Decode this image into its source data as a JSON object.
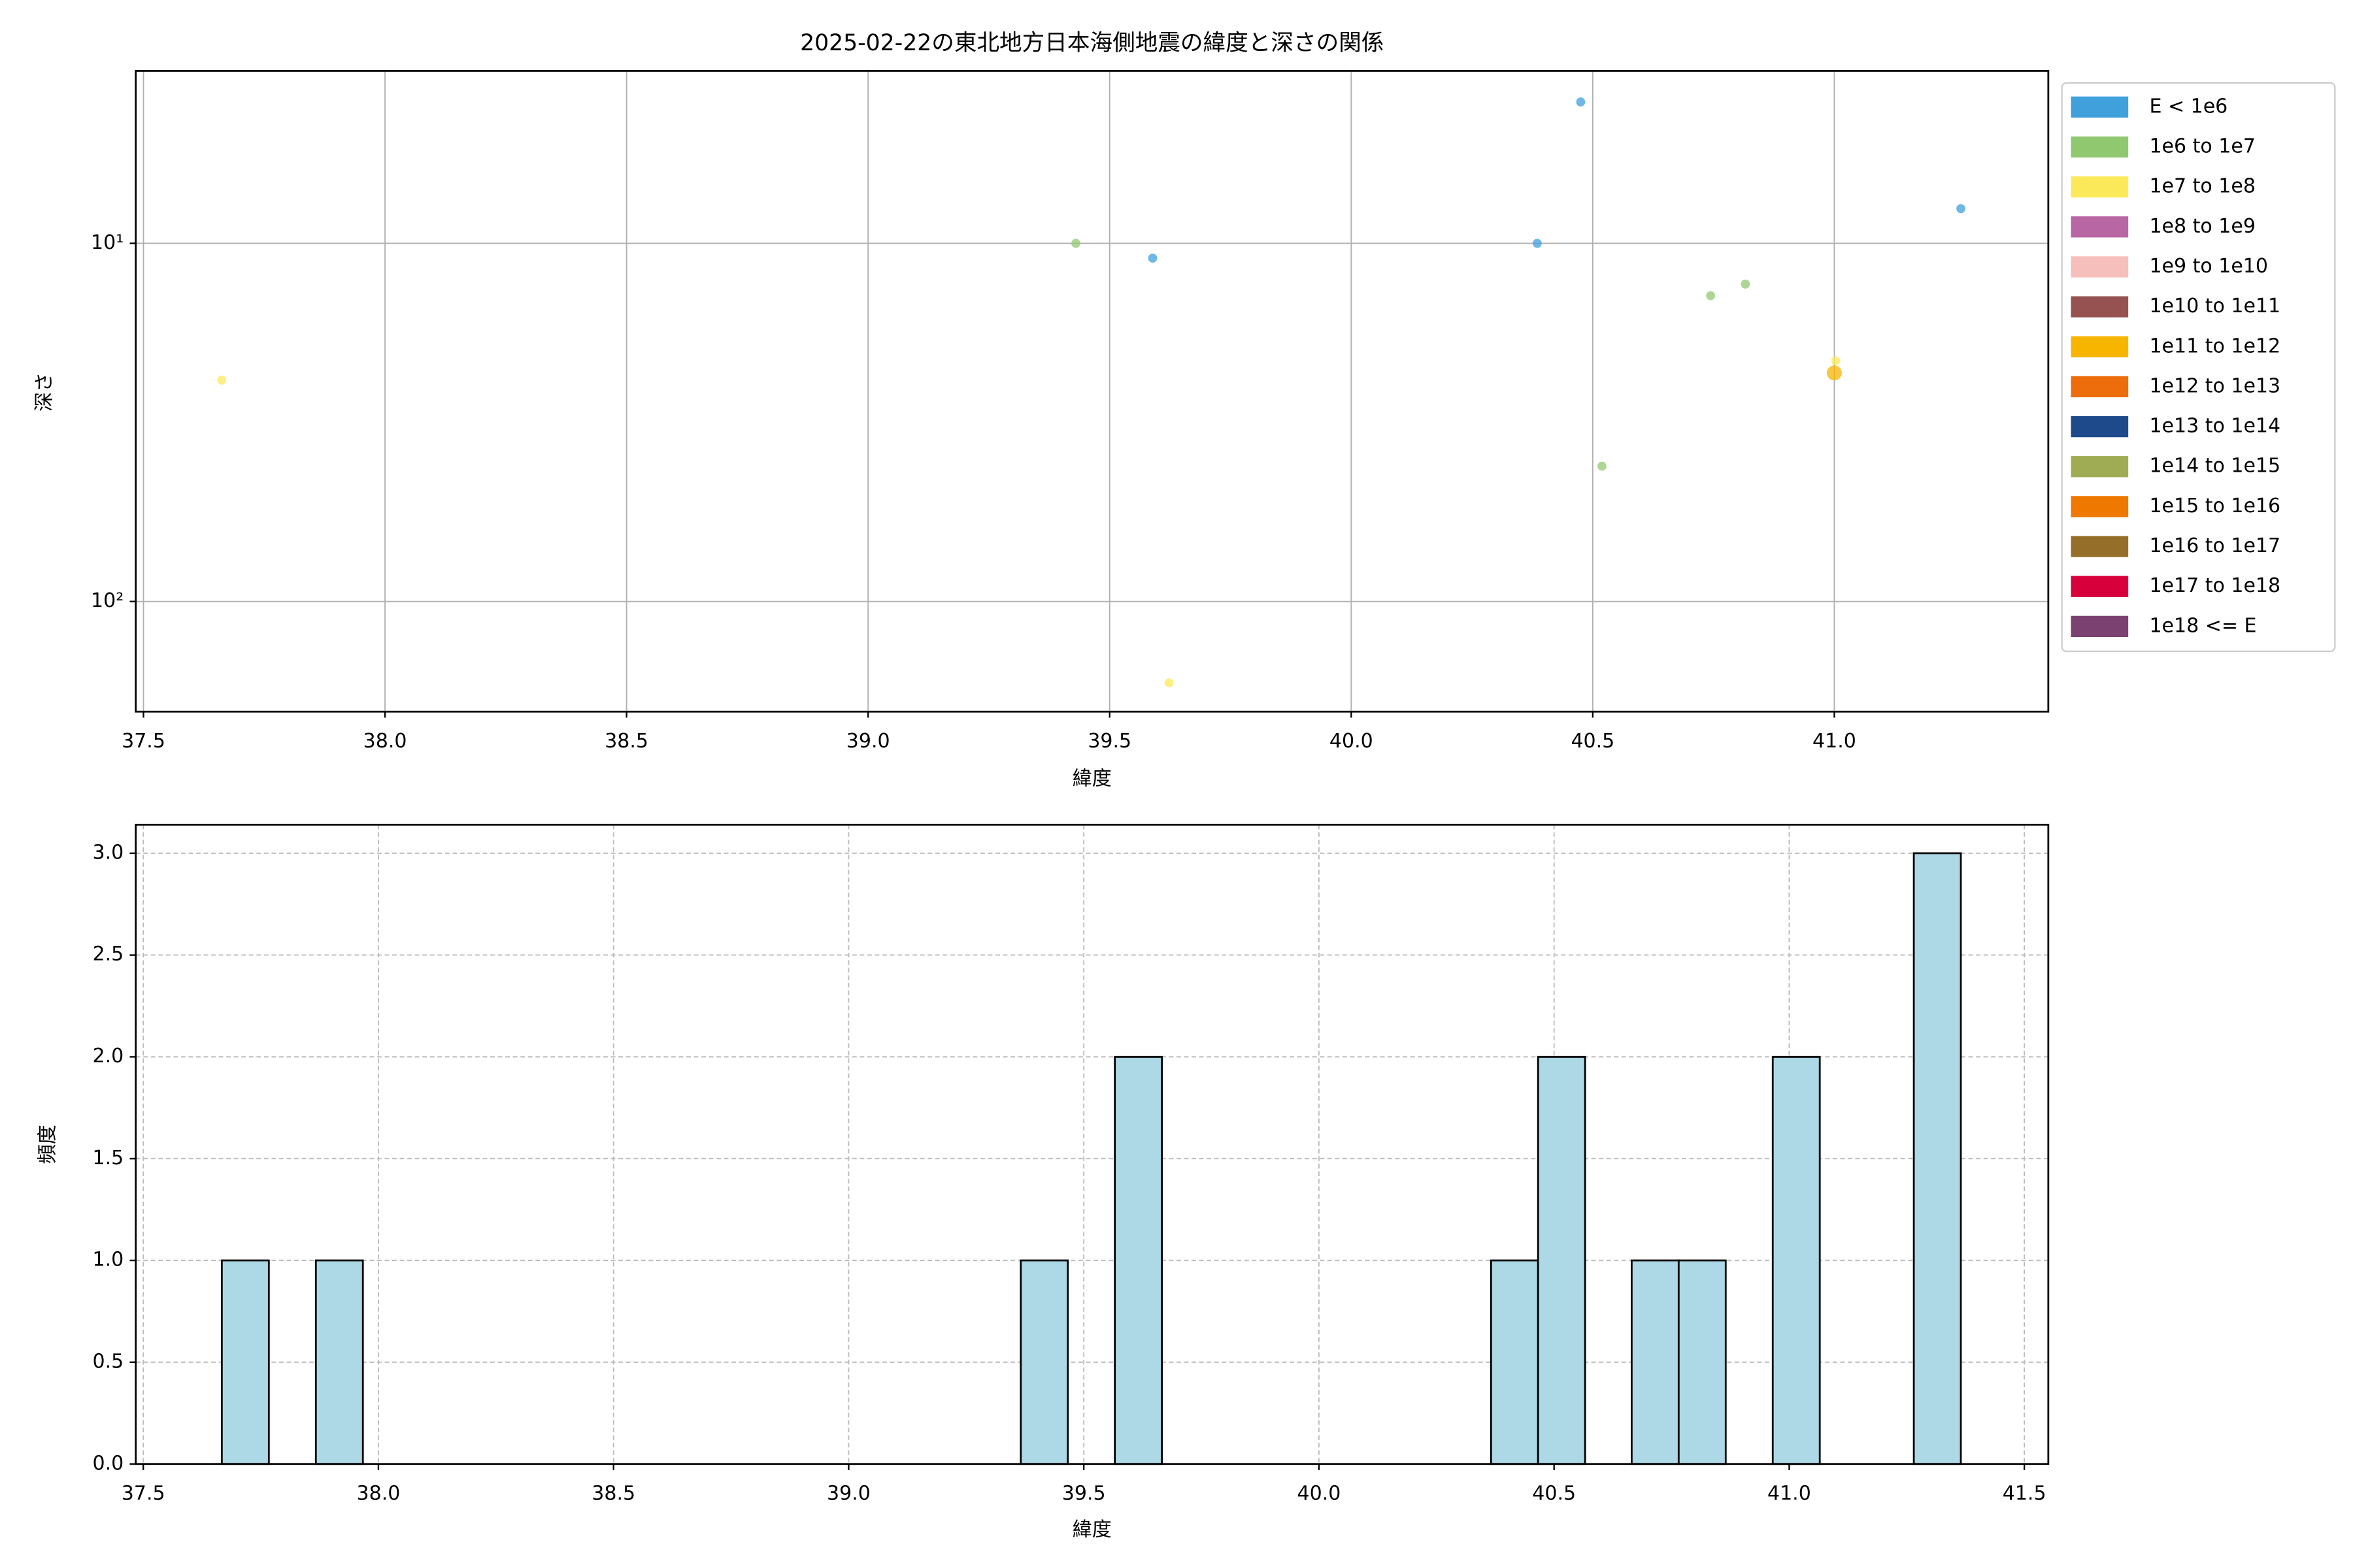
{
  "chart_data": [
    {
      "type": "scatter",
      "title": "2025-02-22の東北地方日本海側地震の緯度と深さの関係",
      "xlabel": "緯度",
      "ylabel": "深さ",
      "xlim": [
        37.484,
        41.443
      ],
      "xticks": [
        37.5,
        {
          "value": 38,
          "label": "38.0"
        },
        38.5,
        {
          "value": 39,
          "label": "39.0"
        },
        39.5,
        {
          "value": 40,
          "label": "40.0"
        },
        40.5,
        {
          "value": 41,
          "label": "41.0"
        }
      ],
      "ylim": [
        203,
        3.3
      ],
      "ylog": true,
      "yticks": [
        {
          "value": 10,
          "label": "10¹"
        },
        {
          "value": 100,
          "label": "10²"
        }
      ],
      "grid": true,
      "legend": "outside right",
      "series": [
        {
          "name": "E < 1e6",
          "color": "#3fa0dc",
          "size": 3,
          "x": [
            39.589,
            40.385,
            40.475,
            41.262
          ],
          "values": [
            11.0,
            10,
            4.03,
            8.0
          ]
        },
        {
          "name": "1e6 to 1e7",
          "color": "#90c870",
          "size": 3,
          "x": [
            39.43,
            40.519,
            40.744,
            40.816
          ],
          "values": [
            10,
            41.9,
            14.0,
            13.0
          ]
        },
        {
          "name": "1e7 to 1e8",
          "color": "#fce95a",
          "size": 3,
          "x": [
            37.662,
            39.623,
            41.003
          ],
          "values": [
            24.1,
            168.7,
            21.3
          ]
        },
        {
          "name": "1e8 to 1e9",
          "color": "#b966a5",
          "size": 3,
          "x": [],
          "values": []
        },
        {
          "name": "1e9 to 1e10",
          "color": "#f6bfbc",
          "size": 3,
          "x": [],
          "values": []
        },
        {
          "name": "1e10 to 1e11",
          "color": "#955251",
          "size": 3,
          "x": [],
          "values": []
        },
        {
          "name": "1e11 to 1e12",
          "color": "#f8b500",
          "size": 5,
          "x": [
            41.0
          ],
          "values": [
            23.0
          ]
        },
        {
          "name": "1e12 to 1e13",
          "color": "#ed6d0c",
          "size": 3,
          "x": [],
          "values": []
        },
        {
          "name": "1e13 to 1e14",
          "color": "#1e4a8c",
          "size": 3,
          "x": [],
          "values": []
        },
        {
          "name": "1e14 to 1e15",
          "color": "#9fac54",
          "size": 3,
          "x": [],
          "values": []
        },
        {
          "name": "1e15 to 1e16",
          "color": "#ee7800",
          "size": 3,
          "x": [],
          "values": []
        },
        {
          "name": "1e16 to 1e17",
          "color": "#956f29",
          "size": 3,
          "x": [],
          "values": []
        },
        {
          "name": "1e17 to 1e18",
          "color": "#d7003a",
          "size": 3,
          "x": [],
          "values": []
        },
        {
          "name": "1e18 <= E",
          "color": "#7a4171",
          "size": 3,
          "x": [],
          "values": []
        }
      ]
    },
    {
      "type": "histogram",
      "xlabel": "緯度",
      "ylabel": "頻度",
      "xlim": [
        37.484,
        41.551
      ],
      "xticks": [
        37.5,
        {
          "value": 38,
          "label": "38.0"
        },
        38.5,
        {
          "value": 39,
          "label": "39.0"
        },
        39.5,
        {
          "value": 40,
          "label": "40.0"
        },
        40.5,
        {
          "value": 41,
          "label": "41.0"
        },
        41.5
      ],
      "ylim": [
        0,
        3.14
      ],
      "yticks": [
        {
          "value": 0,
          "label": "0.0"
        },
        0.5,
        {
          "value": 1,
          "label": "1.0"
        },
        1.5,
        {
          "value": 2,
          "label": "2.0"
        },
        2.5,
        {
          "value": 3,
          "label": "3.0"
        }
      ],
      "grid": true,
      "color": "#add8e6",
      "edgecolor": "#000000",
      "bins": [
        37.667,
        37.767,
        37.867,
        37.967,
        38.067,
        38.167,
        38.267,
        38.367,
        38.467,
        38.567,
        38.666,
        38.766,
        38.866,
        38.966,
        39.066,
        39.166,
        39.266,
        39.366,
        39.466,
        39.566,
        39.666,
        39.766,
        39.866,
        39.966,
        40.066,
        40.166,
        40.266,
        40.366,
        40.466,
        40.566,
        40.665,
        40.765,
        40.865,
        40.965,
        41.065,
        41.165,
        41.265,
        41.365
      ],
      "values": [
        1,
        0,
        1,
        0,
        0,
        0,
        0,
        0,
        0,
        0,
        0,
        0,
        0,
        0,
        0,
        0,
        0,
        1,
        0,
        2,
        0,
        0,
        0,
        0,
        0,
        0,
        0,
        1,
        2,
        0,
        1,
        1,
        0,
        2,
        0,
        0,
        3
      ]
    }
  ]
}
